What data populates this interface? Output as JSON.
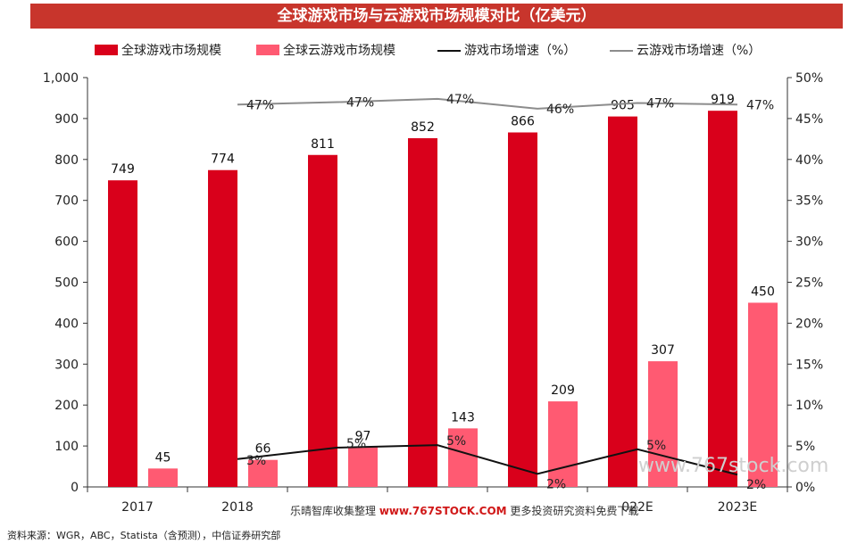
{
  "title": "全球游戏市场与云游戏市场规模对比（亿美元）",
  "legend": [
    {
      "label": "全球游戏市场规模",
      "kind": "bar",
      "color": "#d9001b"
    },
    {
      "label": "全球云游戏市场规模",
      "kind": "bar",
      "color": "#ff5a72"
    },
    {
      "label": "游戏市场增速（%）",
      "kind": "line",
      "color": "#111111"
    },
    {
      "label": "云游戏市场增速（%）",
      "kind": "line",
      "color": "#8c8c8c"
    }
  ],
  "source": "资料来源：WGR，ABC，Statista（含预测），中信证券研究部",
  "watermark": {
    "prefix": "乐晴智库收集整理",
    "url": "www.767STOCK.COM",
    "suffix": "更多投资研究资料免费下载",
    "right": "www.767stock.com"
  },
  "chart_data": {
    "type": "bar",
    "categories": [
      "2017",
      "2018",
      "",
      "",
      "",
      "022E",
      "2023E"
    ],
    "y_left": {
      "min": 0,
      "max": 1000,
      "ticks": [
        "0",
        "100",
        "200",
        "300",
        "400",
        "500",
        "600",
        "700",
        "800",
        "900",
        "1,000"
      ]
    },
    "y_right": {
      "min": 0,
      "max": 50,
      "ticks": [
        "0%",
        "5%",
        "10%",
        "15%",
        "20%",
        "25%",
        "30%",
        "35%",
        "40%",
        "45%",
        "50%"
      ]
    },
    "series": [
      {
        "name": "全球游戏市场规模",
        "type": "bar",
        "axis": "left",
        "color": "#d9001b",
        "values": [
          749,
          774,
          811,
          852,
          866,
          905,
          919
        ],
        "labels": [
          "749",
          "774",
          "811",
          "852",
          "866",
          "905",
          "919"
        ]
      },
      {
        "name": "全球云游戏市场规模",
        "type": "bar",
        "axis": "left",
        "color": "#ff5a72",
        "values": [
          45,
          66,
          97,
          143,
          209,
          307,
          450
        ],
        "labels": [
          "45",
          "66",
          "97",
          "143",
          "209",
          "307",
          "450"
        ]
      },
      {
        "name": "游戏市场增速（%）",
        "type": "line",
        "axis": "right",
        "color": "#111111",
        "values": [
          null,
          3.4,
          4.8,
          5.1,
          1.6,
          4.6,
          1.5
        ],
        "labels": [
          "",
          "3%",
          "5%",
          "5%",
          "2%",
          "5%",
          "2%"
        ]
      },
      {
        "name": "云游戏市场增速（%）",
        "type": "line",
        "axis": "right",
        "color": "#8c8c8c",
        "values": [
          null,
          46.7,
          47.0,
          47.4,
          46.2,
          46.9,
          46.7
        ],
        "labels": [
          "",
          "47%",
          "47%",
          "47%",
          "46%",
          "47%",
          "47%"
        ]
      }
    ],
    "grid": false,
    "legend_position": "top"
  }
}
